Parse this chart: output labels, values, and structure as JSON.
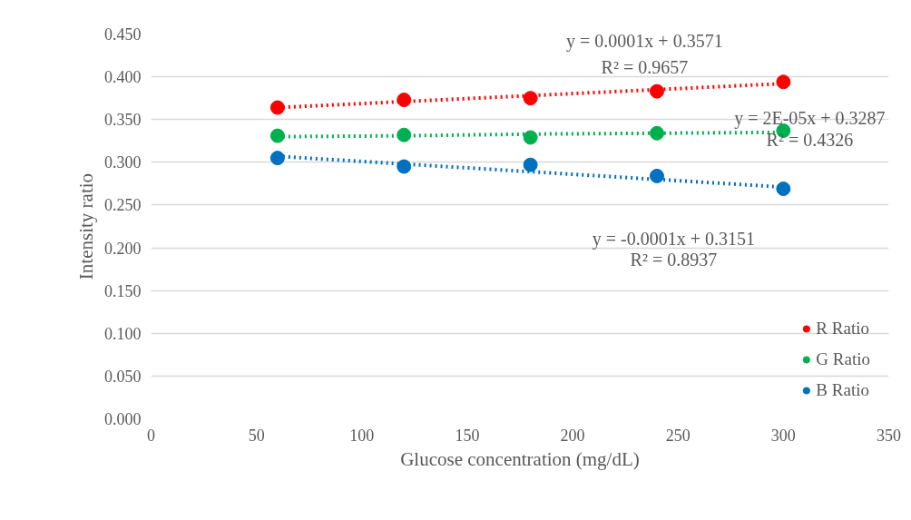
{
  "chart_data": {
    "type": "scatter",
    "xlabel": "Glucose concentration (mg/dL)",
    "ylabel": "Intensity ratio",
    "x": [
      60,
      120,
      180,
      240,
      300
    ],
    "series": [
      {
        "name": "R Ratio",
        "color": "#ff0000",
        "values": [
          0.364,
          0.373,
          0.375,
          0.383,
          0.394
        ]
      },
      {
        "name": "G Ratio",
        "color": "#00b050",
        "values": [
          0.331,
          0.332,
          0.329,
          0.334,
          0.337
        ]
      },
      {
        "name": "B Ratio",
        "color": "#0070c0",
        "values": [
          0.305,
          0.295,
          0.297,
          0.284,
          0.269
        ]
      },
      {
        "type": "line",
        "color": "#ff0000",
        "values": [
          0.364,
          0.371,
          0.378,
          0.385,
          0.392
        ],
        "line_style": "dotted",
        "marker": "none"
      },
      {
        "type": "line",
        "color": "#00b050",
        "values": [
          0.33,
          0.331,
          0.333,
          0.334,
          0.335
        ],
        "line_style": "dotted",
        "marker": "none"
      },
      {
        "type": "line",
        "color": "#0070c0",
        "values": [
          0.307,
          0.298,
          0.289,
          0.28,
          0.271
        ],
        "line_style": "dotted",
        "marker": "none"
      }
    ],
    "marker": "circle",
    "xlim": [
      0,
      350
    ],
    "xticks": [
      0,
      50,
      100,
      150,
      200,
      250,
      300,
      350
    ],
    "ylim": [
      0,
      0.45
    ],
    "yticks": [
      {
        "value": 0,
        "label": "0.000"
      },
      {
        "value": 0.05,
        "label": "0.050"
      },
      {
        "value": 0.1,
        "label": "0.100"
      },
      {
        "value": 0.15,
        "label": "0.150"
      },
      {
        "value": 0.2,
        "label": "0.200"
      },
      {
        "value": 0.25,
        "label": "0.250"
      },
      {
        "value": 0.3,
        "label": "0.300"
      },
      {
        "value": 0.35,
        "label": "0.350"
      },
      {
        "value": 0.4,
        "label": "0.400"
      },
      {
        "value": 0.45,
        "label": "0.450"
      }
    ],
    "grid": "y",
    "legend": "bottom right",
    "annotations": [
      "y = 0.0001x + 0.3571",
      "R² = 0.9657",
      "y = 2E-05x + 0.3287",
      "R² = 0.4326",
      "y = -0.0001x + 0.3151",
      "R² = 0.8937"
    ]
  }
}
